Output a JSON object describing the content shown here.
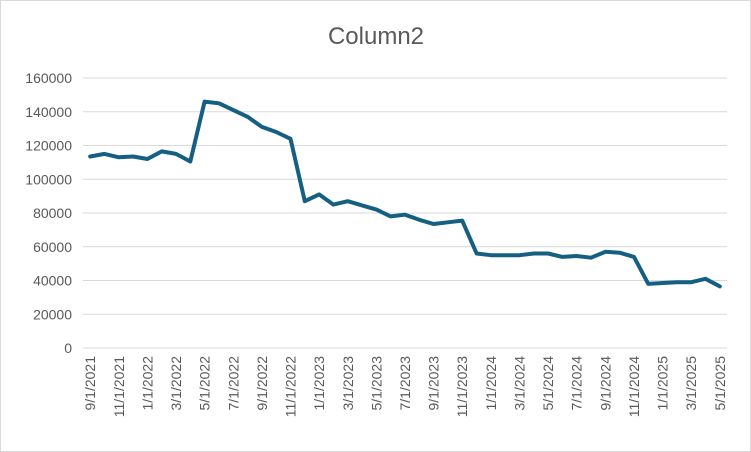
{
  "chart_data": {
    "type": "line",
    "title": "Column2",
    "categories": [
      "9/1/2021",
      null,
      "11/1/2021",
      null,
      "1/1/2022",
      null,
      "3/1/2022",
      null,
      "5/1/2022",
      null,
      "7/1/2022",
      null,
      "9/1/2022",
      null,
      "11/1/2022",
      null,
      "1/1/2023",
      null,
      "3/1/2023",
      null,
      "5/1/2023",
      null,
      "7/1/2023",
      null,
      "9/1/2023",
      null,
      "11/1/2023",
      null,
      "1/1/2024",
      null,
      "3/1/2024",
      null,
      "5/1/2024",
      null,
      "7/1/2024",
      null,
      "9/1/2024",
      null,
      "11/1/2024",
      null,
      "1/1/2025",
      null,
      "3/1/2025",
      null,
      "5/1/2025"
    ],
    "series": [
      {
        "name": "Column2",
        "color": "#156082",
        "values": [
          113500,
          115000,
          113000,
          113500,
          112000,
          116500,
          115000,
          110500,
          146000,
          145000,
          141000,
          137000,
          131000,
          128000,
          124000,
          87000,
          91000,
          85000,
          87000,
          84500,
          82000,
          78000,
          79000,
          76000,
          73500,
          74500,
          75500,
          56000,
          55000,
          55000,
          55000,
          56000,
          56000,
          54000,
          54500,
          53500,
          57000,
          56500,
          54000,
          38000,
          38500,
          39000,
          39000,
          41000,
          36500
        ]
      }
    ],
    "ylim": [
      0,
      160000
    ],
    "yticks": [
      0,
      20000,
      40000,
      60000,
      80000,
      100000,
      120000,
      140000,
      160000
    ],
    "grid": true
  }
}
